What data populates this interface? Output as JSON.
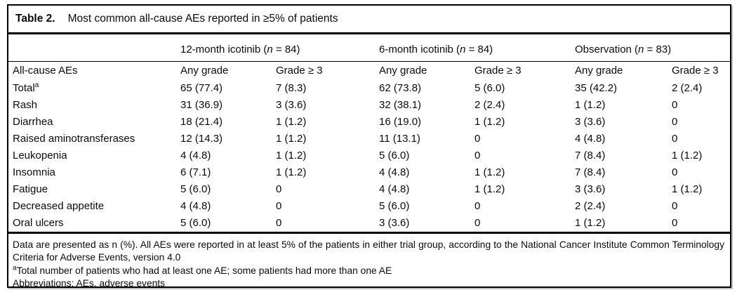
{
  "table": {
    "title": {
      "label": "Table 2.",
      "text": "Most common all-cause AEs reported in ≥5% of patients"
    },
    "groups": [
      {
        "prefix": "12-month icotinib (",
        "n": "n",
        "suffix": " = 84)"
      },
      {
        "prefix": "6-month icotinib (",
        "n": "n",
        "suffix": " = 84)"
      },
      {
        "prefix": "Observation (",
        "n": "n",
        "suffix": " = 83)"
      }
    ],
    "headers": {
      "stub": "All-cause AEs",
      "any_grade": "Any grade",
      "grade3": "Grade ≥ 3"
    },
    "rows": [
      {
        "name": "Total",
        "sup": "a",
        "values": [
          "65 (77.4)",
          "7 (8.3)",
          "62 (73.8)",
          "5 (6.0)",
          "35 (42.2)",
          "2 (2.4)"
        ]
      },
      {
        "name": "Rash",
        "values": [
          "31 (36.9)",
          "3 (3.6)",
          "32 (38.1)",
          "2 (2.4)",
          "1 (1.2)",
          "0"
        ]
      },
      {
        "name": "Diarrhea",
        "values": [
          "18 (21.4)",
          "1 (1.2)",
          "16 (19.0)",
          "1 (1.2)",
          "3 (3.6)",
          "0"
        ]
      },
      {
        "name": "Raised aminotransferases",
        "values": [
          "12 (14.3)",
          "1 (1.2)",
          "11 (13.1)",
          "0",
          "4 (4.8)",
          "0"
        ]
      },
      {
        "name": "Leukopenia",
        "values": [
          "4 (4.8)",
          "1 (1.2)",
          "5 (6.0)",
          "0",
          "7 (8.4)",
          "1 (1.2)"
        ]
      },
      {
        "name": "Insomnia",
        "values": [
          "6 (7.1)",
          "1 (1.2)",
          "4 (4.8)",
          "1 (1.2)",
          "7 (8.4)",
          "0"
        ]
      },
      {
        "name": "Fatigue",
        "values": [
          "5 (6.0)",
          "0",
          "4 (4.8)",
          "1 (1.2)",
          "3 (3.6)",
          "1 (1.2)"
        ]
      },
      {
        "name": "Decreased appetite",
        "values": [
          "4 (4.8)",
          "0",
          "5 (6.0)",
          "0",
          "2 (2.4)",
          "0"
        ]
      },
      {
        "name": "Oral ulcers",
        "values": [
          "5 (6.0)",
          "0",
          "3 (3.6)",
          "0",
          "1 (1.2)",
          "0"
        ]
      }
    ],
    "footnotes": {
      "line1": "Data are presented as n (%). All AEs were reported in at least 5% of the patients in either trial group, according to the National Cancer Institute Common Terminology Criteria for Adverse Events, version 4.0",
      "sup": "a",
      "line2": "Total number of patients who had at least one AE; some patients had more than one AE",
      "line3": "Abbreviations: AEs, adverse events"
    }
  }
}
